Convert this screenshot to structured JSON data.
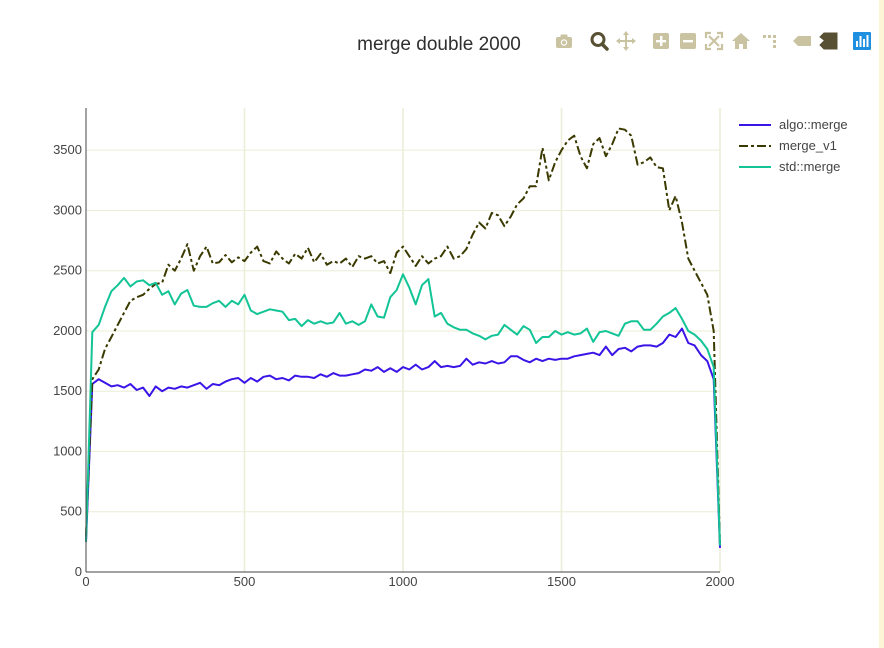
{
  "plot": {
    "title": "merge double 2000",
    "bg_color": "#ffffff",
    "grid_color": "#eceed7",
    "axis_color": "#444444"
  },
  "modebar": {
    "icon_color": "#c9c3a1",
    "active_color": "#575032",
    "buttons": [
      {
        "name": "camera-icon"
      },
      {
        "name": "zoom-icon"
      },
      {
        "name": "pan-icon"
      },
      {
        "name": "zoom-in-icon"
      },
      {
        "name": "zoom-out-icon"
      },
      {
        "name": "autoscale-icon"
      },
      {
        "name": "home-icon"
      },
      {
        "name": "spikelines-icon"
      },
      {
        "name": "hover-closest-icon"
      },
      {
        "name": "hover-compare-icon"
      },
      {
        "name": "plotly-logo-icon"
      }
    ]
  },
  "chart_data": {
    "type": "line",
    "title": "merge double 2000",
    "xlabel": "",
    "ylabel": "",
    "xlim": [
      0,
      2000
    ],
    "ylim": [
      0,
      3850
    ],
    "x_ticks": [
      0,
      500,
      1000,
      1500,
      2000
    ],
    "y_ticks": [
      0,
      500,
      1000,
      1500,
      2000,
      2500,
      3000,
      3500
    ],
    "grid": true,
    "legend_position": "top-right",
    "series": [
      {
        "name": "algo::merge",
        "color": "#3b15e8",
        "dash": "solid",
        "x": [
          0,
          20,
          40,
          60,
          80,
          100,
          120,
          140,
          160,
          180,
          200,
          220,
          240,
          260,
          280,
          300,
          320,
          340,
          360,
          380,
          400,
          420,
          440,
          460,
          480,
          500,
          520,
          540,
          560,
          580,
          600,
          620,
          640,
          660,
          680,
          700,
          720,
          740,
          760,
          780,
          800,
          820,
          840,
          860,
          880,
          900,
          920,
          940,
          960,
          980,
          1000,
          1020,
          1040,
          1060,
          1080,
          1100,
          1120,
          1140,
          1160,
          1180,
          1200,
          1220,
          1240,
          1260,
          1280,
          1300,
          1320,
          1340,
          1360,
          1380,
          1400,
          1420,
          1440,
          1460,
          1480,
          1500,
          1520,
          1540,
          1560,
          1580,
          1600,
          1620,
          1640,
          1660,
          1680,
          1700,
          1720,
          1740,
          1760,
          1780,
          1800,
          1820,
          1840,
          1860,
          1880,
          1900,
          1920,
          1940,
          1960,
          1980,
          2000
        ],
        "y": [
          250,
          1560,
          1600,
          1570,
          1540,
          1550,
          1530,
          1560,
          1510,
          1530,
          1460,
          1540,
          1500,
          1530,
          1520,
          1540,
          1530,
          1550,
          1570,
          1520,
          1560,
          1550,
          1580,
          1600,
          1610,
          1570,
          1610,
          1580,
          1620,
          1630,
          1600,
          1610,
          1590,
          1630,
          1620,
          1620,
          1610,
          1640,
          1620,
          1650,
          1630,
          1630,
          1640,
          1650,
          1680,
          1670,
          1700,
          1660,
          1690,
          1660,
          1700,
          1680,
          1720,
          1680,
          1700,
          1750,
          1700,
          1710,
          1700,
          1710,
          1770,
          1720,
          1740,
          1730,
          1750,
          1730,
          1740,
          1790,
          1790,
          1760,
          1740,
          1770,
          1750,
          1770,
          1760,
          1770,
          1770,
          1790,
          1800,
          1810,
          1820,
          1800,
          1870,
          1800,
          1850,
          1860,
          1830,
          1870,
          1880,
          1880,
          1870,
          1900,
          1970,
          1950,
          2020,
          1900,
          1880,
          1800,
          1750,
          1600,
          200
        ]
      },
      {
        "name": "merge_v1",
        "color": "#3a3900",
        "dash": "dashdot",
        "x": [
          0,
          20,
          40,
          60,
          80,
          100,
          120,
          140,
          160,
          180,
          200,
          220,
          240,
          260,
          280,
          300,
          320,
          340,
          360,
          380,
          400,
          420,
          440,
          460,
          480,
          500,
          520,
          540,
          560,
          580,
          600,
          620,
          640,
          660,
          680,
          700,
          720,
          740,
          760,
          780,
          800,
          820,
          840,
          860,
          880,
          900,
          920,
          940,
          960,
          980,
          1000,
          1020,
          1040,
          1060,
          1080,
          1100,
          1120,
          1140,
          1160,
          1180,
          1200,
          1220,
          1240,
          1260,
          1280,
          1300,
          1320,
          1340,
          1360,
          1380,
          1400,
          1420,
          1440,
          1460,
          1480,
          1500,
          1520,
          1540,
          1560,
          1580,
          1600,
          1620,
          1640,
          1660,
          1680,
          1700,
          1720,
          1740,
          1760,
          1780,
          1800,
          1820,
          1840,
          1860,
          1880,
          1900,
          1920,
          1940,
          1960,
          1980,
          2000
        ],
        "y": [
          300,
          1600,
          1680,
          1850,
          1950,
          2050,
          2150,
          2250,
          2280,
          2300,
          2350,
          2390,
          2400,
          2550,
          2500,
          2600,
          2720,
          2500,
          2620,
          2700,
          2560,
          2570,
          2630,
          2570,
          2610,
          2580,
          2650,
          2700,
          2580,
          2560,
          2660,
          2600,
          2560,
          2640,
          2600,
          2690,
          2570,
          2640,
          2550,
          2580,
          2560,
          2600,
          2530,
          2620,
          2600,
          2620,
          2560,
          2580,
          2480,
          2650,
          2700,
          2620,
          2540,
          2620,
          2560,
          2600,
          2620,
          2700,
          2600,
          2620,
          2680,
          2800,
          2900,
          2850,
          2980,
          2960,
          2870,
          2950,
          3050,
          3100,
          3200,
          3200,
          3520,
          3250,
          3400,
          3500,
          3580,
          3620,
          3450,
          3350,
          3550,
          3600,
          3450,
          3550,
          3680,
          3670,
          3620,
          3380,
          3400,
          3440,
          3360,
          3350,
          3000,
          3120,
          2900,
          2600,
          2500,
          2400,
          2300,
          2000,
          220
        ]
      },
      {
        "name": "std::merge",
        "color": "#12c496",
        "dash": "solid",
        "x": [
          0,
          20,
          40,
          60,
          80,
          100,
          120,
          140,
          160,
          180,
          200,
          220,
          240,
          260,
          280,
          300,
          320,
          340,
          360,
          380,
          400,
          420,
          440,
          460,
          480,
          500,
          520,
          540,
          560,
          580,
          600,
          620,
          640,
          660,
          680,
          700,
          720,
          740,
          760,
          780,
          800,
          820,
          840,
          860,
          880,
          900,
          920,
          940,
          960,
          980,
          1000,
          1020,
          1040,
          1060,
          1080,
          1100,
          1120,
          1140,
          1160,
          1180,
          1200,
          1220,
          1240,
          1260,
          1280,
          1300,
          1320,
          1340,
          1360,
          1380,
          1400,
          1420,
          1440,
          1460,
          1480,
          1500,
          1520,
          1540,
          1560,
          1580,
          1600,
          1620,
          1640,
          1660,
          1680,
          1700,
          1720,
          1740,
          1760,
          1780,
          1800,
          1820,
          1840,
          1860,
          1880,
          1900,
          1920,
          1940,
          1960,
          1980,
          2000
        ],
        "y": [
          250,
          1990,
          2050,
          2200,
          2330,
          2380,
          2440,
          2370,
          2410,
          2420,
          2380,
          2400,
          2300,
          2330,
          2220,
          2310,
          2340,
          2210,
          2200,
          2200,
          2230,
          2250,
          2200,
          2250,
          2220,
          2300,
          2170,
          2140,
          2160,
          2180,
          2170,
          2160,
          2090,
          2100,
          2040,
          2090,
          2060,
          2080,
          2060,
          2070,
          2150,
          2060,
          2080,
          2050,
          2080,
          2220,
          2120,
          2110,
          2280,
          2340,
          2470,
          2360,
          2220,
          2380,
          2430,
          2120,
          2150,
          2060,
          2030,
          2010,
          2010,
          1980,
          1960,
          1930,
          1960,
          1970,
          2050,
          2010,
          1970,
          2040,
          2010,
          1900,
          1950,
          1950,
          2000,
          1970,
          1990,
          1970,
          1980,
          2020,
          1910,
          1990,
          2000,
          1980,
          1960,
          2060,
          2080,
          2080,
          2010,
          2010,
          2060,
          2120,
          2150,
          2190,
          2100,
          2000,
          1970,
          1920,
          1850,
          1700,
          220
        ]
      }
    ]
  }
}
